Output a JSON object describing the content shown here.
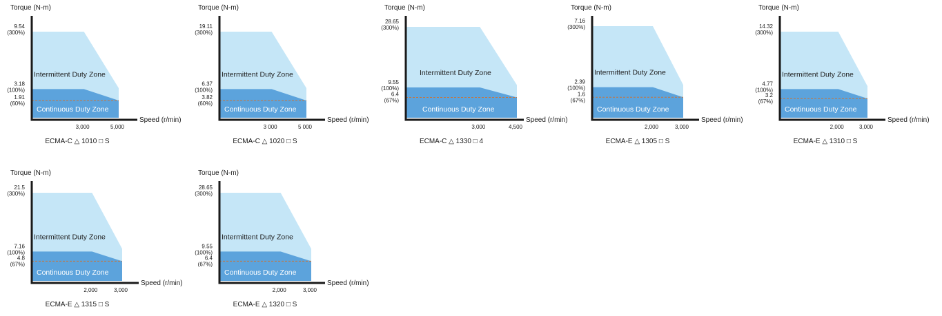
{
  "colors": {
    "intermittent": "#c5e6f7",
    "continuous": "#5ca3dc",
    "axis": "#1a1a1a",
    "rated_line": "#c8743a"
  },
  "chart_data": [
    {
      "type": "area",
      "model": "ECMA-C △ 1010 □ S",
      "ylabel": "Torque (N-m)",
      "xlabel": "Speed (r/min)",
      "zones": {
        "intermittent": "Intermittent Duty Zone",
        "continuous": "Continuous Duty Zone"
      },
      "rated_speed": 3000,
      "max_speed": 5000,
      "x_ticks": [
        "3,000",
        "5,000"
      ],
      "peak_torque": 9.54,
      "rated_torque": 3.18,
      "reduced_torque": 1.91,
      "peak_label": [
        "9.54",
        "(300%)"
      ],
      "rated_label": [
        "3.18",
        "(100%)"
      ],
      "reduced_label": [
        "1.91",
        "(60%)"
      ]
    },
    {
      "type": "area",
      "model": "ECMA-C △ 1020 □ S",
      "ylabel": "Torque (N-m)",
      "xlabel": "Speed (r/min)",
      "zones": {
        "intermittent": "Intermittent Duty Zone",
        "continuous": "Continuous Duty Zone"
      },
      "rated_speed": 3000,
      "max_speed": 5000,
      "x_ticks": [
        "3 000",
        "5 000"
      ],
      "peak_torque": 19.11,
      "rated_torque": 6.37,
      "reduced_torque": 3.82,
      "peak_label": [
        "19.11",
        "(300%)"
      ],
      "rated_label": [
        "6.37",
        "(100%)"
      ],
      "reduced_label": [
        "3.82",
        "(60%)"
      ]
    },
    {
      "type": "area",
      "model": "ECMA-C △ 1330 □ 4",
      "ylabel": "Torque (N-m)",
      "xlabel": "Speed (r/min)",
      "zones": {
        "intermittent": "Intermittent Duty Zone",
        "continuous": "Continuous Duty Zone"
      },
      "rated_speed": 3000,
      "max_speed": 4500,
      "x_ticks": [
        "3,000",
        "4,500"
      ],
      "peak_torque": 28.65,
      "rated_torque": 9.55,
      "reduced_torque": 6.4,
      "peak_label": [
        "28.65",
        "(300%)"
      ],
      "rated_label": [
        "9.55",
        "(100%)"
      ],
      "reduced_label": [
        "6.4",
        "(67%)"
      ]
    },
    {
      "type": "area",
      "model": "ECMA-E △ 1305 □ S",
      "ylabel": "Torque (N-m)",
      "xlabel": "Speed (r/min)",
      "zones": {
        "intermittent": "Intermittent Duty Zone",
        "continuous": "Continuous Duty Zone"
      },
      "rated_speed": 2000,
      "max_speed": 3000,
      "x_ticks": [
        "2,000",
        "3,000"
      ],
      "peak_torque": 7.16,
      "rated_torque": 2.39,
      "reduced_torque": 1.6,
      "peak_label": [
        "7.16",
        "(300%)"
      ],
      "rated_label": [
        "2.39",
        "(100%)"
      ],
      "reduced_label": [
        "1.6",
        "(67%)"
      ]
    },
    {
      "type": "area",
      "model": "ECMA-E △ 1310 □ S",
      "ylabel": "Torque (N-m)",
      "xlabel": "Speed (r/min)",
      "zones": {
        "intermittent": "Intermittent Duty Zone",
        "continuous": "Continuous Duty Zone"
      },
      "rated_speed": 2000,
      "max_speed": 3000,
      "x_ticks": [
        "2,000",
        "3,000"
      ],
      "peak_torque": 14.32,
      "rated_torque": 4.77,
      "reduced_torque": 3.2,
      "peak_label": [
        "14.32",
        "(300%)"
      ],
      "rated_label": [
        "4.77",
        "(100%)"
      ],
      "reduced_label": [
        "3.2",
        "(67%)"
      ]
    },
    {
      "type": "area",
      "model": "ECMA-E △ 1315 □ S",
      "ylabel": "Torque (N-m)",
      "xlabel": "Speed (r/min)",
      "zones": {
        "intermittent": "Intermittent Duty Zone",
        "continuous": "Continuous Duty Zone"
      },
      "rated_speed": 2000,
      "max_speed": 3000,
      "x_ticks": [
        "2,000",
        "3,000"
      ],
      "peak_torque": 21.5,
      "rated_torque": 7.16,
      "reduced_torque": 4.8,
      "peak_label": [
        "21.5",
        "(300%)"
      ],
      "rated_label": [
        "7.16",
        "(100%)"
      ],
      "reduced_label": [
        "4.8",
        "(67%)"
      ]
    },
    {
      "type": "area",
      "model": "ECMA-E △ 1320 □ S",
      "ylabel": "Torque (N-m)",
      "xlabel": "Speed (r/min)",
      "zones": {
        "intermittent": "Intermittent Duty Zone",
        "continuous": "Continuous Duty Zone"
      },
      "rated_speed": 2000,
      "max_speed": 3000,
      "x_ticks": [
        "2,000",
        "3,000"
      ],
      "peak_torque": 28.65,
      "rated_torque": 9.55,
      "reduced_torque": 6.4,
      "peak_label": [
        "28.65",
        "(300%)"
      ],
      "rated_label": [
        "9.55",
        "(100%)"
      ],
      "reduced_label": [
        "6.4",
        "(67%)"
      ]
    }
  ]
}
